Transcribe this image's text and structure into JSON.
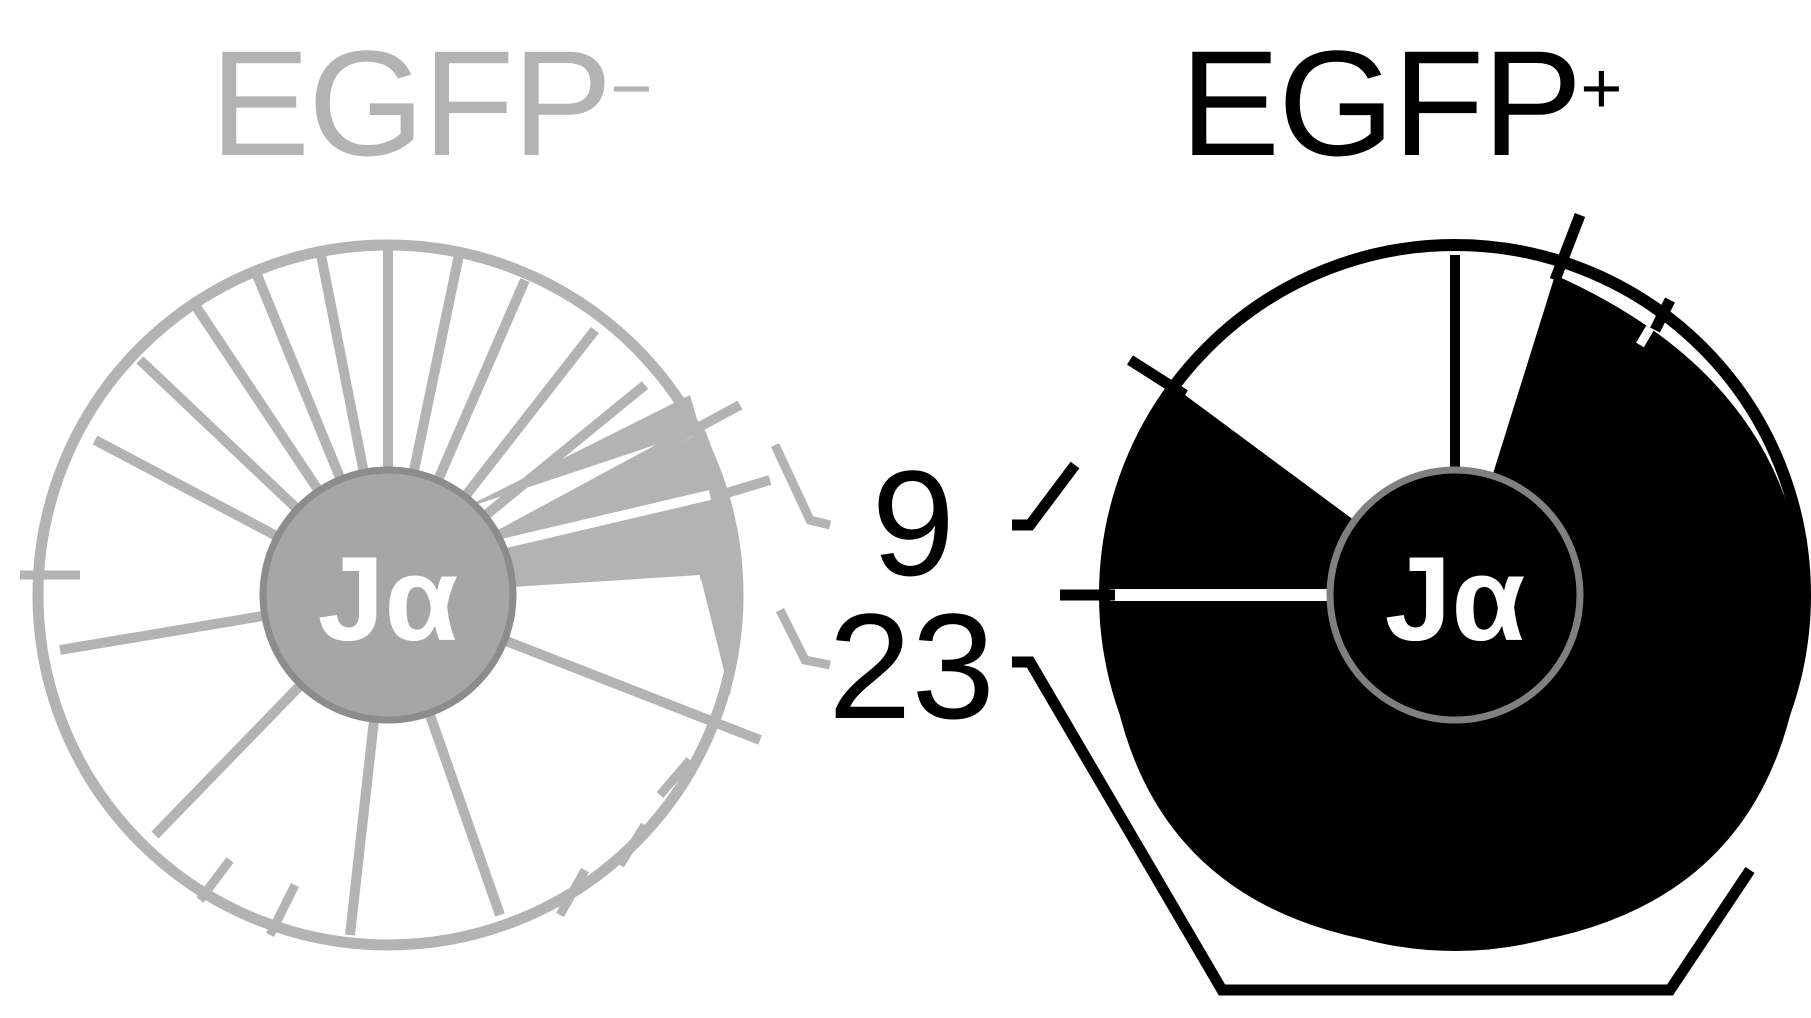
{
  "titles": {
    "negative": {
      "text": "EGFP",
      "superscript": "−",
      "color": "#b3b3b3"
    },
    "positive": {
      "text": "EGFP",
      "superscript": "+",
      "color": "#000000"
    }
  },
  "hub_label": "Jα",
  "family_labels": {
    "top": "9",
    "bottom": "23"
  },
  "colors": {
    "negative_wheel": "#b3b3b3",
    "negative_hub": "#a6a6a6",
    "negative_hub_ring": "#8c8c8c",
    "positive_wheel": "#000000",
    "positive_hub_ring": "#808080",
    "background": "#ffffff"
  }
}
